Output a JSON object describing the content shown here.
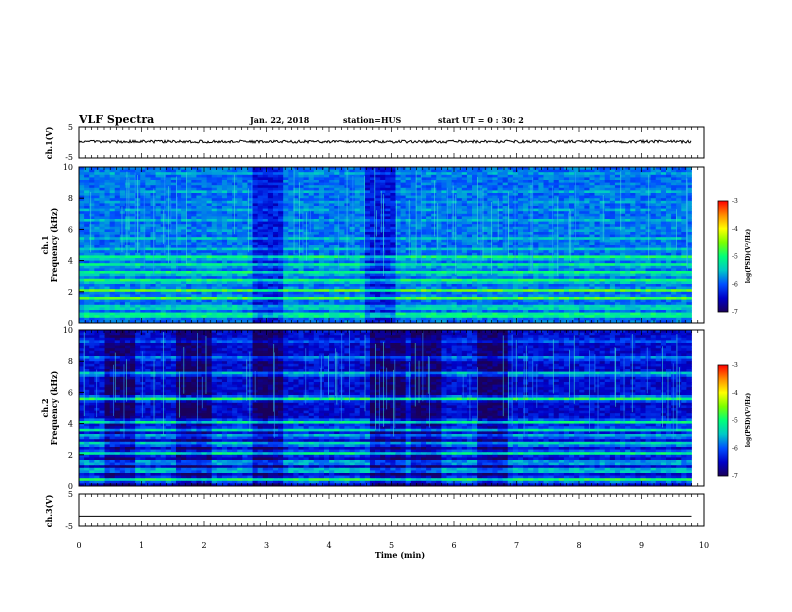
{
  "header": {
    "title": "VLF Spectra",
    "date": "Jan. 22, 2018",
    "station": "station=HUS",
    "start_ut": "start  UT =   0 : 30: 2"
  },
  "colors": {
    "line": "#000000",
    "colormap": [
      "#1a005a",
      "#0000c8",
      "#0050ff",
      "#00c8c8",
      "#00ff7a",
      "#7aff00",
      "#ffff00",
      "#ff8c00",
      "#ff0000",
      "#ffffff"
    ]
  },
  "chart_data": [
    {
      "type": "line",
      "id": "ch1-waveform",
      "ylabel": "ch.1(V)",
      "ylim": [
        -5,
        5
      ],
      "yticks": [
        "5",
        "-5"
      ],
      "x": [
        0,
        9.8
      ],
      "series": [
        {
          "values": [
            0.3,
            0.3
          ]
        }
      ],
      "note_noise": "small-amplitude noisy trace"
    },
    {
      "type": "heatmap",
      "id": "ch1-spectrogram",
      "ylabel": "ch.1\nFrequency (kHz)",
      "ylim": [
        0,
        10
      ],
      "yticks": [
        "0",
        "2",
        "4",
        "6",
        "8",
        "10"
      ],
      "xlim": [
        0,
        9.8
      ],
      "colorbar": {
        "label": "log(PSD)(V²/Hz)",
        "range": [
          -7,
          -3
        ],
        "ticks": [
          "-3",
          "-4",
          "-5",
          "-6",
          "-7"
        ]
      },
      "bands_khz": [
        {
          "f": 0.5,
          "level": 0.65
        },
        {
          "f": 1.0,
          "level": 0.55
        },
        {
          "f": 1.6,
          "level": 0.6
        },
        {
          "f": 2.1,
          "level": 0.62
        },
        {
          "f": 2.7,
          "level": 0.6
        },
        {
          "f": 3.2,
          "level": 0.58
        },
        {
          "f": 3.7,
          "level": 0.55
        },
        {
          "f": 4.2,
          "level": 0.6
        },
        {
          "f": 4.8,
          "level": 0.45
        },
        {
          "f": 5.4,
          "level": 0.4
        },
        {
          "f": 6.0,
          "level": 0.42
        },
        {
          "f": 6.6,
          "level": 0.38
        },
        {
          "f": 7.2,
          "level": 0.4
        },
        {
          "f": 7.8,
          "level": 0.38
        },
        {
          "f": 8.4,
          "level": 0.36
        },
        {
          "f": 9.0,
          "level": 0.38
        },
        {
          "f": 9.6,
          "level": 0.35
        }
      ],
      "background_level": 0.28
    },
    {
      "type": "heatmap",
      "id": "ch2-spectrogram",
      "ylabel": "ch.2\nFrequency (kHz)",
      "ylim": [
        0,
        10
      ],
      "yticks": [
        "0",
        "2",
        "4",
        "6",
        "8",
        "10"
      ],
      "xlim": [
        0,
        9.8
      ],
      "colorbar": {
        "label": "log(PSD)(V²/Hz)",
        "range": [
          -7,
          -3
        ],
        "ticks": [
          "-3",
          "-4",
          "-5",
          "-6",
          "-7"
        ]
      },
      "bands_khz": [
        {
          "f": 0.4,
          "level": 0.55
        },
        {
          "f": 1.0,
          "level": 0.5
        },
        {
          "f": 1.5,
          "level": 0.45
        },
        {
          "f": 2.1,
          "level": 0.5
        },
        {
          "f": 2.7,
          "level": 0.48
        },
        {
          "f": 3.2,
          "level": 0.42
        },
        {
          "f": 3.6,
          "level": 0.45
        },
        {
          "f": 4.1,
          "level": 0.5
        },
        {
          "f": 5.6,
          "level": 0.55
        },
        {
          "f": 7.2,
          "level": 0.45
        },
        {
          "f": 8.2,
          "level": 0.35
        },
        {
          "f": 9.3,
          "level": 0.3
        }
      ],
      "background_level": 0.14
    },
    {
      "type": "line",
      "id": "ch3-waveform",
      "ylabel": "ch.3(V)",
      "ylim": [
        -5,
        5
      ],
      "yticks": [
        "5",
        "0",
        "-5"
      ],
      "x": [
        0,
        9.8
      ],
      "series": [
        {
          "values": [
            -2,
            -2
          ]
        }
      ]
    }
  ],
  "xaxis": {
    "label": "Time (min)",
    "xlim": [
      0,
      10
    ],
    "ticks": [
      "0",
      "1",
      "2",
      "3",
      "4",
      "5",
      "6",
      "7",
      "8",
      "9",
      "10"
    ]
  }
}
